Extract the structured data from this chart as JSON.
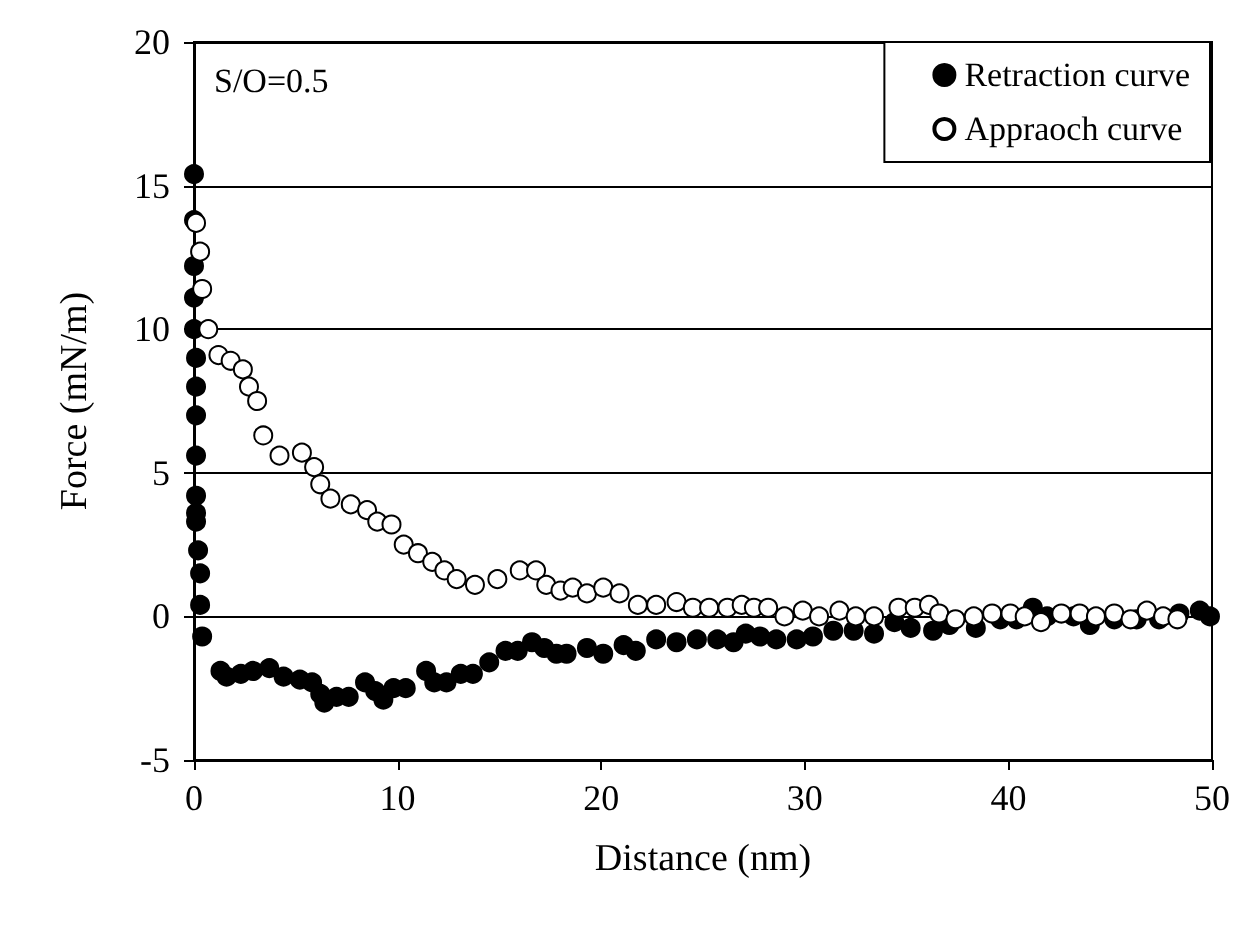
{
  "chart_data": {
    "type": "scatter",
    "xlabel": "Distance (nm)",
    "ylabel": "Force (mN/m)",
    "annotations": [
      "S/O=0.5"
    ],
    "xlim": [
      0,
      50
    ],
    "xticks": [
      0,
      10,
      20,
      30,
      40,
      50
    ],
    "ylim": [
      -5,
      20
    ],
    "yticks": [
      -5,
      0,
      5,
      10,
      15,
      20
    ],
    "grid": "y",
    "legend": "top right",
    "marker": "circle",
    "series": [
      {
        "name": "Retraction curve",
        "color": "#000000",
        "x": [
          0,
          0,
          0,
          0,
          0,
          0.1,
          0.1,
          0.1,
          0.1,
          0.1,
          0.1,
          0.1,
          0.2,
          0.3,
          0.3,
          0.4,
          1.3,
          1.6,
          2.3,
          2.9,
          3.7,
          4.4,
          5.2,
          5.8,
          6.2,
          6.4,
          7.0,
          7.6,
          8.4,
          8.9,
          9.3,
          9.8,
          10.4,
          11.4,
          11.8,
          12.4,
          13.1,
          13.7,
          14.5,
          15.3,
          15.9,
          16.6,
          17.2,
          17.8,
          18.3,
          19.3,
          20.1,
          21.1,
          21.7,
          22.7,
          23.7,
          24.7,
          25.7,
          26.5,
          27.1,
          27.8,
          28.6,
          29.6,
          30.4,
          31.4,
          32.4,
          33.4,
          34.4,
          35.2,
          36.3,
          37.1,
          38.4,
          39.6,
          40.4,
          41.2,
          41.9,
          43.2,
          44.0,
          45.2,
          46.3,
          47.4,
          48.4,
          49.4,
          49.9
        ],
        "values": [
          15.4,
          13.8,
          12.2,
          11.1,
          10.0,
          9.0,
          8.0,
          7.0,
          5.6,
          4.2,
          3.6,
          3.3,
          2.3,
          1.5,
          0.4,
          -0.7,
          -1.9,
          -2.1,
          -2.0,
          -1.9,
          -1.8,
          -2.1,
          -2.2,
          -2.3,
          -2.7,
          -3.0,
          -2.8,
          -2.8,
          -2.3,
          -2.6,
          -2.9,
          -2.5,
          -2.5,
          -1.9,
          -2.3,
          -2.3,
          -2.0,
          -2.0,
          -1.6,
          -1.2,
          -1.2,
          -0.9,
          -1.1,
          -1.3,
          -1.3,
          -1.1,
          -1.3,
          -1.0,
          -1.2,
          -0.8,
          -0.9,
          -0.8,
          -0.8,
          -0.9,
          -0.6,
          -0.7,
          -0.8,
          -0.8,
          -0.7,
          -0.5,
          -0.5,
          -0.6,
          -0.2,
          -0.4,
          -0.5,
          -0.3,
          -0.4,
          -0.1,
          -0.1,
          0.3,
          0.0,
          0.0,
          -0.3,
          -0.1,
          -0.1,
          -0.1,
          0.1,
          0.2,
          0.0
        ]
      },
      {
        "name": "Appraoch curve",
        "color": "#ffffff",
        "x": [
          0.1,
          0.3,
          0.4,
          0.7,
          1.2,
          1.8,
          2.4,
          2.7,
          3.1,
          3.4,
          4.2,
          5.3,
          5.9,
          6.2,
          6.7,
          7.7,
          8.5,
          9.0,
          9.7,
          10.3,
          11.0,
          11.7,
          12.3,
          12.9,
          13.8,
          14.9,
          16.0,
          16.8,
          17.3,
          18.0,
          18.6,
          19.3,
          20.1,
          20.9,
          21.8,
          22.7,
          23.7,
          24.5,
          25.3,
          26.2,
          26.9,
          27.5,
          28.2,
          29.0,
          29.9,
          30.7,
          31.7,
          32.5,
          33.4,
          34.6,
          35.4,
          36.1,
          36.6,
          37.4,
          38.3,
          39.2,
          40.1,
          40.8,
          41.6,
          42.6,
          43.5,
          44.3,
          45.2,
          46.0,
          46.8,
          47.6,
          48.3
        ],
        "values": [
          13.7,
          12.7,
          11.4,
          10.0,
          9.1,
          8.9,
          8.6,
          8.0,
          7.5,
          6.3,
          5.6,
          5.7,
          5.2,
          4.6,
          4.1,
          3.9,
          3.7,
          3.3,
          3.2,
          2.5,
          2.2,
          1.9,
          1.6,
          1.3,
          1.1,
          1.3,
          1.6,
          1.6,
          1.1,
          0.9,
          1.0,
          0.8,
          1.0,
          0.8,
          0.4,
          0.4,
          0.5,
          0.3,
          0.3,
          0.3,
          0.4,
          0.3,
          0.3,
          0.0,
          0.2,
          0.0,
          0.2,
          0.0,
          0.0,
          0.3,
          0.3,
          0.4,
          0.1,
          -0.1,
          0.0,
          0.1,
          0.1,
          0.0,
          -0.2,
          0.1,
          0.1,
          0.0,
          0.1,
          -0.1,
          0.2,
          0.0,
          -0.1
        ]
      }
    ]
  }
}
